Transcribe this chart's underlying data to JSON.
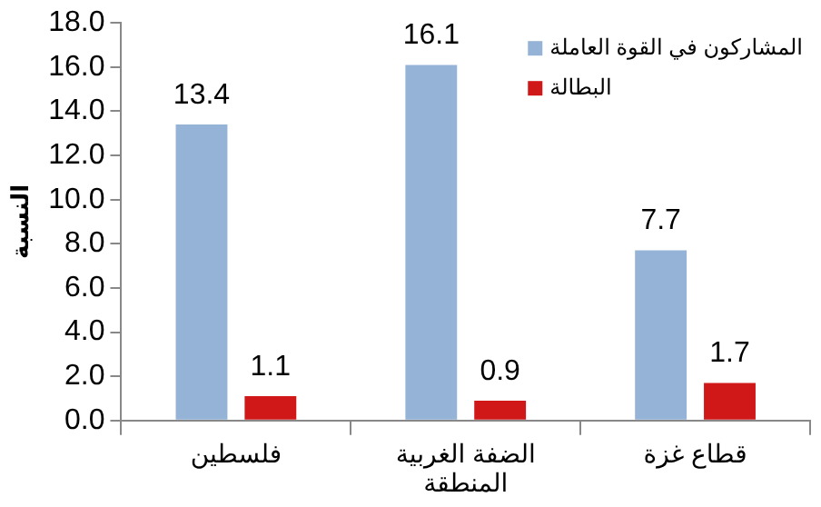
{
  "chart_data": {
    "type": "bar",
    "xlabel": "المنطقة",
    "ylabel": "النسبة",
    "categories": [
      "فلسطين",
      "الضفة الغربية",
      "قطاع غزة"
    ],
    "series": [
      {
        "name": "المشاركون في القوة العاملة",
        "color": "#95b3d7",
        "values": [
          13.4,
          16.1,
          7.7
        ]
      },
      {
        "name": "البطالة",
        "color": "#d01818",
        "values": [
          1.1,
          0.9,
          1.7
        ]
      }
    ],
    "ylim": [
      0,
      18
    ],
    "yticks": [
      {
        "value": 0,
        "label": "0.0"
      },
      {
        "value": 2,
        "label": "2.0"
      },
      {
        "value": 4,
        "label": "4.0"
      },
      {
        "value": 6,
        "label": "6.0"
      },
      {
        "value": 8,
        "label": "8.0"
      },
      {
        "value": 10,
        "label": "10.0"
      },
      {
        "value": 12,
        "label": "12.0"
      },
      {
        "value": 14,
        "label": "14.0"
      },
      {
        "value": 16,
        "label": "16.0"
      },
      {
        "value": 18,
        "label": "18.0"
      }
    ],
    "grid": false,
    "legend": "top right",
    "data_labels": true
  }
}
